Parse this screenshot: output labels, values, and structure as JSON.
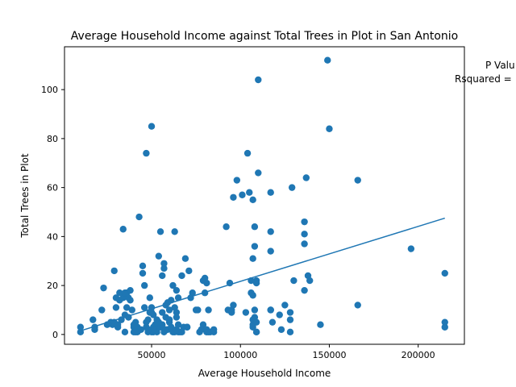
{
  "chart_data": {
    "type": "scatter",
    "title": "Average Household Income against Total Trees in Plot in San Antonio",
    "xlabel": "Average Household Income",
    "ylabel": "Total Trees in Plot",
    "xlim": [
      1000,
      226000
    ],
    "ylim": [
      -4,
      117.5
    ],
    "xticks": [
      50000,
      100000,
      150000,
      200000
    ],
    "xtick_labels": [
      "50000",
      "100000",
      "150000",
      "200000"
    ],
    "yticks": [
      0,
      20,
      40,
      60,
      80,
      100
    ],
    "ytick_labels": [
      "0",
      "20",
      "40",
      "60",
      "80",
      "100"
    ],
    "grid": false,
    "legend": "none",
    "colors": {
      "points": "#1f77b4",
      "fit_line": "#1f77b4"
    },
    "annotations": {
      "p_value": "P Valu",
      "rsquared": "Rsquared ="
    },
    "fit_line": {
      "x": [
        10000,
        215000
      ],
      "y": [
        1.5,
        47.5
      ]
    },
    "x": [
      10000,
      10000,
      17000,
      18000,
      18000,
      22000,
      23000,
      25000,
      27000,
      28000,
      29000,
      29000,
      30000,
      30000,
      31000,
      31000,
      32000,
      32000,
      33000,
      34000,
      34000,
      35000,
      35000,
      36000,
      36000,
      37000,
      37000,
      38000,
      38000,
      39000,
      40000,
      40000,
      41000,
      42000,
      42000,
      43000,
      44000,
      45000,
      45000,
      46000,
      46000,
      47000,
      47000,
      47000,
      48000,
      48000,
      48000,
      49000,
      49000,
      50000,
      50000,
      50000,
      51000,
      51000,
      51000,
      52000,
      52000,
      53000,
      53000,
      54000,
      54000,
      55000,
      55000,
      56000,
      56000,
      57000,
      57000,
      57000,
      58000,
      58000,
      58000,
      59000,
      59000,
      60000,
      60000,
      60000,
      61000,
      61000,
      62000,
      62000,
      63000,
      63000,
      63000,
      64000,
      64000,
      64000,
      65000,
      65000,
      65000,
      66000,
      67000,
      67000,
      68000,
      69000,
      70000,
      70000,
      71000,
      72000,
      73000,
      75000,
      76000,
      77000,
      78000,
      79000,
      79000,
      80000,
      80000,
      81000,
      81000,
      81000,
      82000,
      82000,
      83000,
      85000,
      85000,
      92000,
      93000,
      94000,
      95000,
      95000,
      96000,
      96000,
      98000,
      101000,
      103000,
      104000,
      105000,
      106000,
      106000,
      107000,
      107000,
      107000,
      107000,
      107000,
      108000,
      108000,
      108000,
      108000,
      109000,
      109000,
      109000,
      109000,
      109000,
      110000,
      110000,
      117000,
      117000,
      117000,
      117000,
      117000,
      118000,
      122000,
      123000,
      125000,
      128000,
      128000,
      128000,
      129000,
      130000,
      136000,
      136000,
      136000,
      136000,
      137000,
      138000,
      139000,
      145000,
      149000,
      150000,
      166000,
      166000,
      196000,
      215000,
      215000,
      215000,
      40000,
      51000,
      64000,
      56000,
      41000,
      60000,
      48000,
      50000,
      35000,
      107000
    ],
    "y": [
      3,
      1,
      6,
      3,
      2,
      10,
      19,
      4,
      5,
      4,
      26,
      5,
      15,
      11,
      3,
      4,
      17,
      14,
      6,
      43,
      15,
      8,
      1,
      11,
      17,
      7,
      15,
      14,
      18,
      10,
      3,
      1,
      5,
      1,
      3,
      48,
      2,
      25,
      28,
      20,
      11,
      74,
      3,
      5,
      1,
      6,
      2,
      15,
      9,
      85,
      1,
      11,
      8,
      3,
      1,
      2,
      4,
      6,
      1,
      5,
      32,
      42,
      3,
      9,
      24,
      27,
      29,
      1,
      7,
      12,
      2,
      2,
      13,
      10,
      5,
      6,
      14,
      3,
      20,
      1,
      42,
      11,
      1,
      18,
      7,
      2,
      15,
      4,
      1,
      1,
      1,
      24,
      3,
      31,
      3,
      3,
      26,
      15,
      17,
      10,
      10,
      1,
      2,
      4,
      22,
      17,
      23,
      1,
      21,
      2,
      1,
      10,
      1,
      2,
      1,
      44,
      10,
      21,
      9,
      10,
      12,
      56,
      63,
      57,
      9,
      74,
      58,
      22,
      17,
      55,
      3,
      4,
      6,
      31,
      10,
      7,
      44,
      36,
      22,
      21,
      5,
      1,
      1,
      104,
      66,
      58,
      42,
      34,
      10,
      10,
      5,
      8,
      2,
      12,
      1,
      6,
      9,
      60,
      22,
      18,
      41,
      37,
      46,
      64,
      24,
      22,
      4,
      112,
      84,
      12,
      63,
      35,
      25,
      3,
      5,
      4,
      2,
      9,
      4,
      1,
      6,
      2,
      9,
      17,
      16
    ]
  }
}
